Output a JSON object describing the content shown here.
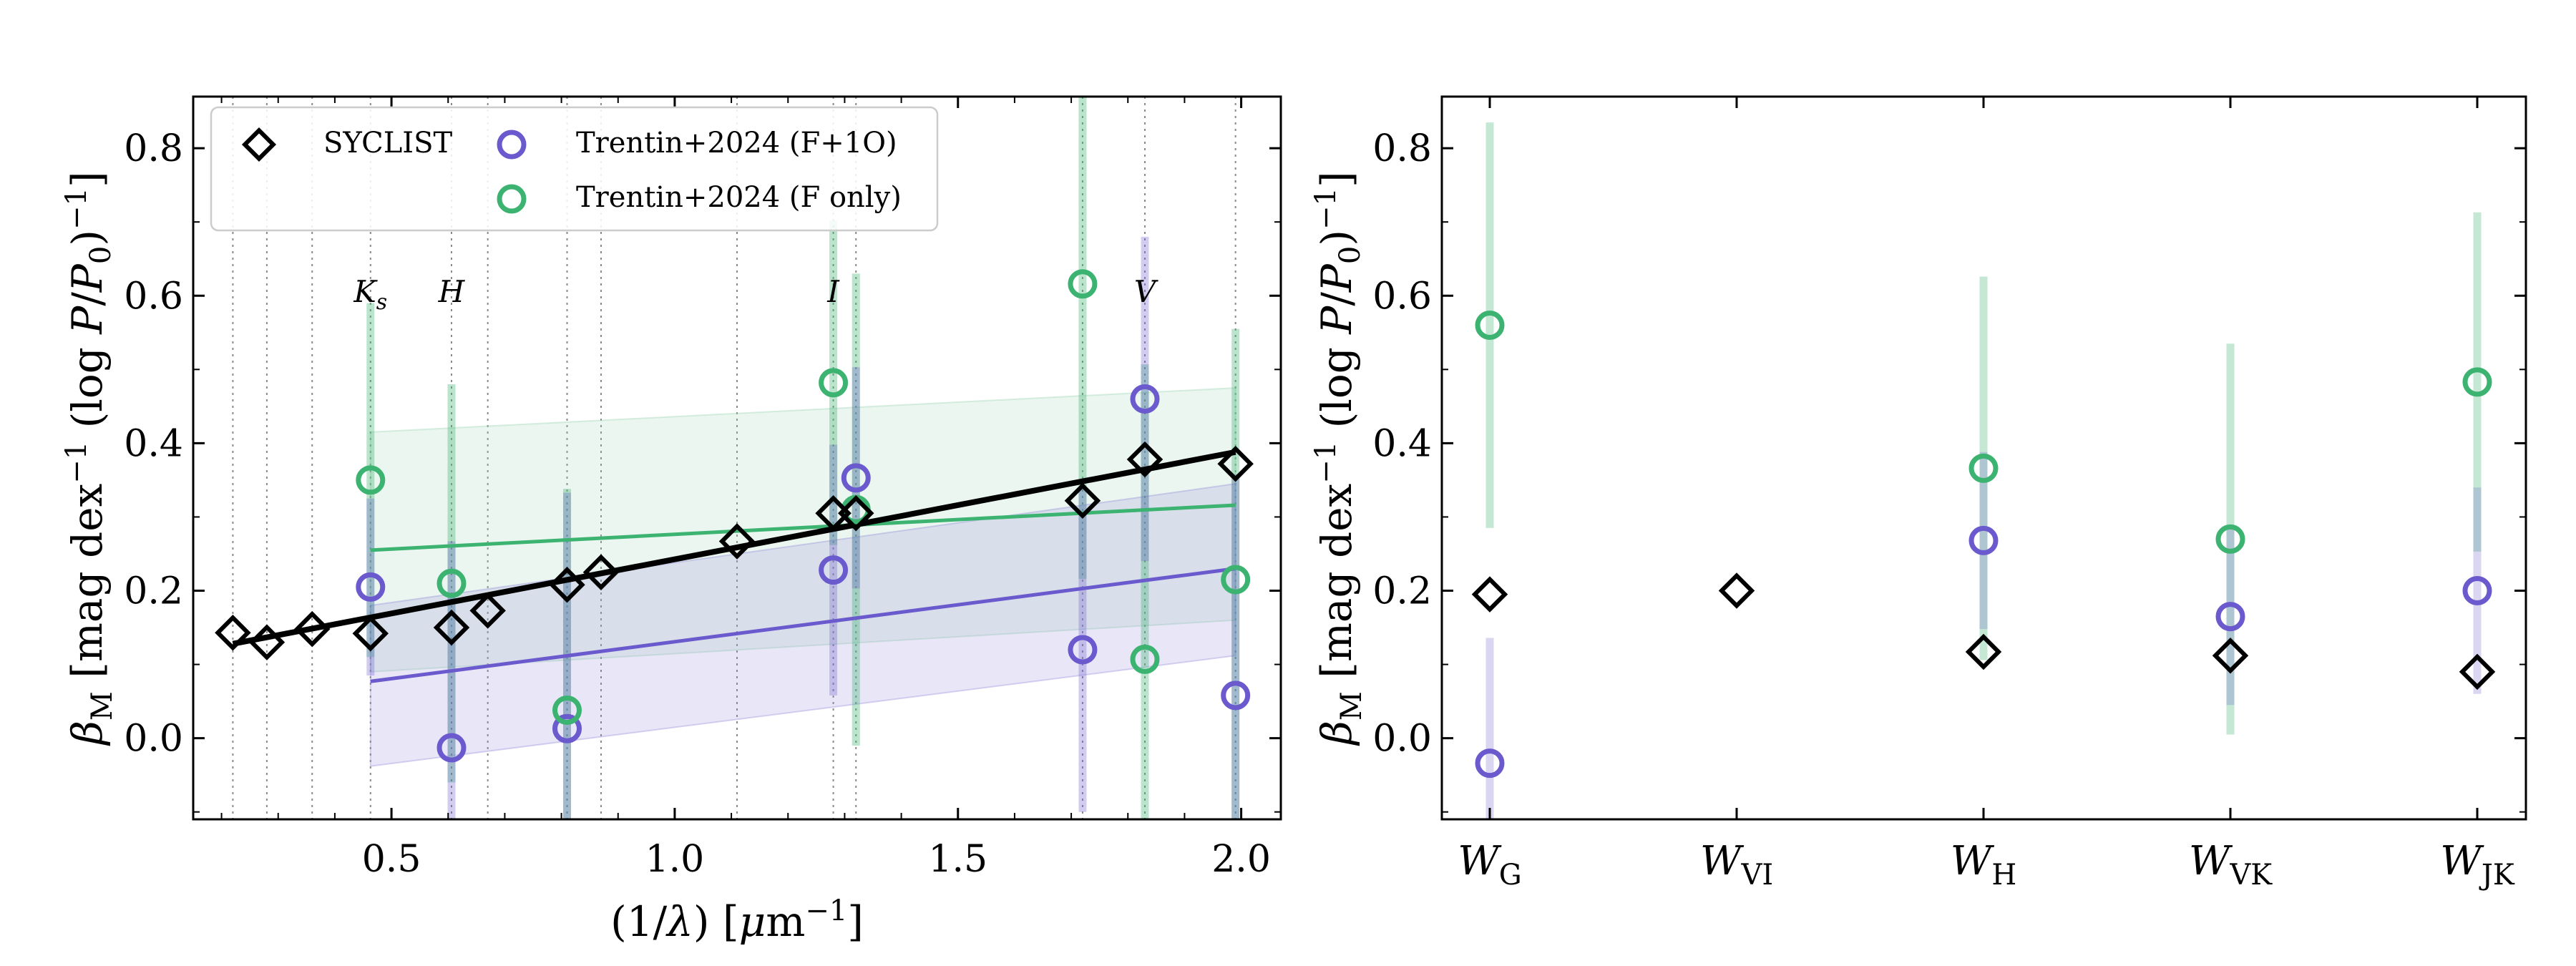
{
  "colors": {
    "syclist": "#000000",
    "f1o": "#6a5acd",
    "fonly": "#3cb371",
    "f1o_band": "#8f86d9",
    "fonly_band": "#96d1b0",
    "overlap_bar": "#7f9fc0"
  },
  "legend": {
    "syclist": "SYCLIST",
    "f1o": "Trentin+2024 (F+1O)",
    "fonly": "Trentin+2024 (F only)"
  },
  "chart_data": [
    {
      "type": "scatter",
      "panel": "left",
      "xlabel": "(1/λ) [μm⁻¹]",
      "ylabel": "β_M [mag dex⁻¹ (log P/P₀)⁻¹]",
      "xlim": [
        0.15,
        2.07
      ],
      "ylim": [
        -0.11,
        0.87
      ],
      "xticks": [
        0.5,
        1.0,
        1.5,
        2.0
      ],
      "xtick_labels": [
        "0.5",
        "1.0",
        "1.5",
        "2.0"
      ],
      "yticks": [
        0.0,
        0.2,
        0.4,
        0.6,
        0.8
      ],
      "ytick_labels": [
        "0.0",
        "0.2",
        "0.4",
        "0.6",
        "0.8"
      ],
      "band_labels": [
        {
          "text": "Ks",
          "x": 0.463
        },
        {
          "text": "H",
          "x": 0.606
        },
        {
          "text": "I",
          "x": 1.28
        },
        {
          "text": "V",
          "x": 1.83
        }
      ],
      "vlines": [
        0.22,
        0.28,
        0.36,
        0.463,
        0.606,
        0.67,
        0.81,
        0.87,
        1.11,
        1.28,
        1.32,
        1.72,
        1.83,
        1.99
      ],
      "series": [
        {
          "name": "SYCLIST",
          "x": [
            0.22,
            0.28,
            0.36,
            0.463,
            0.606,
            0.67,
            0.81,
            0.87,
            1.11,
            1.28,
            1.32,
            1.72,
            1.83,
            1.99
          ],
          "y": [
            0.143,
            0.13,
            0.148,
            0.142,
            0.15,
            0.173,
            0.208,
            0.225,
            0.267,
            0.305,
            0.305,
            0.322,
            0.378,
            0.372
          ]
        },
        {
          "name": "Trentin+2024 (F+1O)",
          "x": [
            0.463,
            0.606,
            0.81,
            1.28,
            1.32,
            1.72,
            1.83,
            1.99
          ],
          "y": [
            0.205,
            -0.013,
            0.013,
            0.228,
            0.353,
            0.12,
            0.46,
            0.058
          ],
          "err": [
            0.12,
            0.28,
            0.32,
            0.17,
            0.15,
            0.22,
            0.22,
            0.3
          ]
        },
        {
          "name": "Trentin+2024 (F only)",
          "x": [
            0.463,
            0.606,
            0.81,
            1.28,
            1.32,
            1.72,
            1.83,
            1.99
          ],
          "y": [
            0.35,
            0.21,
            0.038,
            0.482,
            0.31,
            0.616,
            0.107,
            0.215
          ],
          "err": [
            0.24,
            0.27,
            0.3,
            0.22,
            0.32,
            0.4,
            0.4,
            0.34
          ]
        }
      ],
      "fits": [
        {
          "name": "SYCLIST fit",
          "x": [
            0.22,
            1.99
          ],
          "y": [
            0.128,
            0.388
          ]
        },
        {
          "name": "F+1O fit",
          "x": [
            0.463,
            1.99
          ],
          "y": [
            0.077,
            0.23
          ],
          "band_lower": [
            -0.038,
            0.112
          ],
          "band_upper": [
            0.18,
            0.345
          ]
        },
        {
          "name": "F only fit",
          "x": [
            0.463,
            1.99
          ],
          "y": [
            0.255,
            0.316
          ],
          "band_lower": [
            0.09,
            0.16
          ],
          "band_upper": [
            0.415,
            0.475
          ]
        }
      ]
    },
    {
      "type": "scatter",
      "panel": "right",
      "ylabel": "β_M [mag dex⁻¹ (log P/P₀)⁻¹]",
      "ylim": [
        -0.11,
        0.87
      ],
      "yticks": [
        0.0,
        0.2,
        0.4,
        0.6,
        0.8
      ],
      "ytick_labels": [
        "0.0",
        "0.2",
        "0.4",
        "0.6",
        "0.8"
      ],
      "categories": [
        {
          "base": "W",
          "sub": "G"
        },
        {
          "base": "W",
          "sub": "VI"
        },
        {
          "base": "W",
          "sub": "H"
        },
        {
          "base": "W",
          "sub": "VK"
        },
        {
          "base": "W",
          "sub": "JK"
        }
      ],
      "series": [
        {
          "name": "SYCLIST",
          "values": [
            0.195,
            0.2,
            0.117,
            0.112,
            0.09
          ]
        },
        {
          "name": "Trentin+2024 (F+1O)",
          "values": [
            -0.034,
            null,
            0.268,
            0.165,
            0.2
          ],
          "err": [
            0.17,
            null,
            0.12,
            0.12,
            0.14
          ]
        },
        {
          "name": "Trentin+2024 (F only)",
          "values": [
            0.56,
            null,
            0.366,
            0.27,
            0.483
          ],
          "err": [
            0.275,
            null,
            0.26,
            0.265,
            0.23
          ]
        }
      ]
    }
  ]
}
